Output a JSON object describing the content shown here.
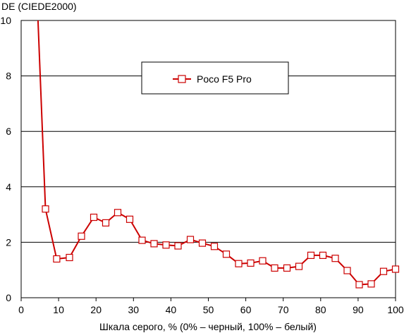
{
  "chart_data": {
    "type": "line",
    "title": "",
    "ylabel": "DE (CIEDE2000)",
    "xlabel": "Шкала серого, % (0% – черный, 100% – белый)",
    "xlim": [
      0,
      100
    ],
    "ylim": [
      0,
      10
    ],
    "x_ticks": [
      0,
      10,
      20,
      30,
      40,
      50,
      60,
      70,
      80,
      90,
      100
    ],
    "y_ticks": [
      0,
      2,
      4,
      6,
      8,
      10
    ],
    "grid": "horizontal",
    "legend_position": "top-center",
    "series": [
      {
        "name": "Poco F5 Pro",
        "color": "#cc0000",
        "marker": "square",
        "x": [
          4.5,
          6.5,
          9.5,
          12.9,
          16.1,
          19.4,
          22.6,
          25.8,
          29.0,
          32.3,
          35.5,
          38.7,
          41.9,
          45.2,
          48.4,
          51.6,
          54.8,
          58.1,
          61.3,
          64.5,
          67.7,
          71.0,
          74.2,
          77.4,
          80.6,
          83.9,
          87.1,
          90.3,
          93.5,
          96.8,
          100.0
        ],
        "y": [
          10.0,
          3.2,
          1.4,
          1.45,
          2.22,
          2.9,
          2.7,
          3.07,
          2.83,
          2.07,
          1.95,
          1.9,
          1.87,
          2.1,
          1.97,
          1.85,
          1.57,
          1.23,
          1.25,
          1.33,
          1.07,
          1.07,
          1.13,
          1.53,
          1.53,
          1.42,
          0.98,
          0.47,
          0.5,
          0.95,
          1.03
        ]
      }
    ]
  }
}
